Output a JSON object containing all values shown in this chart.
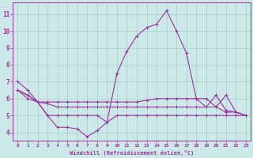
{
  "xlabel": "Windchill (Refroidissement éolien,°C)",
  "background_color": "#cce8e8",
  "grid_color": "#aacccc",
  "line_color": "#993399",
  "xlim": [
    -0.5,
    23.5
  ],
  "ylim": [
    3.5,
    11.7
  ],
  "yticks": [
    4,
    5,
    6,
    7,
    8,
    9,
    10,
    11
  ],
  "xticks": [
    0,
    1,
    2,
    3,
    4,
    5,
    6,
    7,
    8,
    9,
    10,
    11,
    12,
    13,
    14,
    15,
    16,
    17,
    18,
    19,
    20,
    21,
    22,
    23
  ],
  "series": [
    {
      "x": [
        0,
        1,
        2,
        3,
        4,
        5,
        6,
        7,
        8,
        9,
        10,
        11,
        12,
        13,
        14,
        15,
        16,
        17,
        18,
        19,
        20,
        21,
        22,
        23
      ],
      "y": [
        7.0,
        6.5,
        5.8,
        5.0,
        4.3,
        4.3,
        4.2,
        3.75,
        4.1,
        4.6,
        7.5,
        8.8,
        9.7,
        10.2,
        10.4,
        11.2,
        10.0,
        8.7,
        6.0,
        5.5,
        6.2,
        5.3,
        5.2,
        5.0
      ]
    },
    {
      "x": [
        0,
        1,
        2,
        3,
        4,
        5,
        6,
        7,
        8,
        9,
        10,
        11,
        12,
        13,
        14,
        15,
        16,
        17,
        18,
        19,
        20,
        21,
        22,
        23
      ],
      "y": [
        6.5,
        6.2,
        5.8,
        5.8,
        5.8,
        5.8,
        5.8,
        5.8,
        5.8,
        5.8,
        5.8,
        5.8,
        5.8,
        5.9,
        6.0,
        6.0,
        6.0,
        6.0,
        6.0,
        6.0,
        5.5,
        6.2,
        5.2,
        5.0
      ]
    },
    {
      "x": [
        0,
        1,
        2,
        3,
        4,
        5,
        6,
        7,
        8,
        9,
        10,
        11,
        12,
        13,
        14,
        15,
        16,
        17,
        18,
        19,
        20,
        21,
        22,
        23
      ],
      "y": [
        6.5,
        6.2,
        5.8,
        5.7,
        5.5,
        5.5,
        5.5,
        5.5,
        5.5,
        5.5,
        5.5,
        5.5,
        5.5,
        5.5,
        5.5,
        5.5,
        5.5,
        5.5,
        5.5,
        5.5,
        5.5,
        5.2,
        5.2,
        5.0
      ]
    },
    {
      "x": [
        0,
        1,
        2,
        3,
        4,
        5,
        6,
        7,
        8,
        9,
        10,
        11,
        12,
        13,
        14,
        15,
        16,
        17,
        18,
        19,
        20,
        21,
        22,
        23
      ],
      "y": [
        6.5,
        6.0,
        5.8,
        5.0,
        5.0,
        5.0,
        5.0,
        5.0,
        5.0,
        4.6,
        5.0,
        5.0,
        5.0,
        5.0,
        5.0,
        5.0,
        5.0,
        5.0,
        5.0,
        5.0,
        5.0,
        5.0,
        5.0,
        5.0
      ]
    }
  ]
}
